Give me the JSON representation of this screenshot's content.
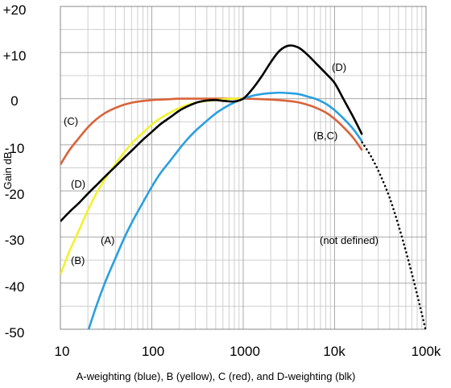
{
  "chart_data": {
    "type": "line",
    "title": "",
    "xlabel": "A-weighting (blue), B (yellow), C (red), and D-weighting (blk)",
    "ylabel": "Gain dB",
    "x_scale": "log",
    "xlim": [
      10,
      100000
    ],
    "ylim": [
      -50,
      20
    ],
    "grid": true,
    "x_ticks": [
      {
        "value": 10,
        "label": "10"
      },
      {
        "value": 100,
        "label": "100"
      },
      {
        "value": 1000,
        "label": "1000"
      },
      {
        "value": 10000,
        "label": "10k"
      },
      {
        "value": 100000,
        "label": "100k"
      }
    ],
    "y_ticks": [
      {
        "value": 20,
        "label": "+20"
      },
      {
        "value": 10,
        "label": "+10"
      },
      {
        "value": 0,
        "label": "0"
      },
      {
        "value": -10,
        "label": "-10"
      },
      {
        "value": -20,
        "label": "-20"
      },
      {
        "value": -30,
        "label": "-30"
      },
      {
        "value": -40,
        "label": "-40"
      },
      {
        "value": -50,
        "label": "-50"
      }
    ],
    "series": [
      {
        "id": "A",
        "color": "#2a9fe0",
        "style": "solid",
        "x": [
          20,
          25,
          31.5,
          40,
          50,
          63,
          80,
          100,
          125,
          160,
          200,
          250,
          315,
          400,
          500,
          630,
          800,
          1000,
          1250,
          1600,
          2000,
          2500,
          3150,
          4000,
          5000,
          6300,
          8000,
          10000,
          12500,
          16000,
          20000
        ],
        "y": [
          -50.5,
          -44.7,
          -39.4,
          -34.6,
          -30.2,
          -26.2,
          -22.5,
          -19.1,
          -16.1,
          -13.4,
          -10.9,
          -8.6,
          -6.6,
          -4.8,
          -3.2,
          -1.9,
          -0.8,
          0,
          0.6,
          1.0,
          1.2,
          1.3,
          1.2,
          1.0,
          0.5,
          -0.1,
          -1.1,
          -2.5,
          -4.3,
          -6.6,
          -9.3
        ]
      },
      {
        "id": "B",
        "color": "#f2f230",
        "style": "solid",
        "x": [
          10,
          12.5,
          16,
          20,
          25,
          31.5,
          40,
          50,
          63,
          80,
          100,
          125,
          160,
          200,
          250,
          315,
          400,
          500,
          630,
          800,
          1000
        ],
        "y": [
          -38.2,
          -33.2,
          -28.5,
          -24.2,
          -20.4,
          -17.1,
          -14.2,
          -11.6,
          -9.3,
          -7.4,
          -5.6,
          -4.2,
          -3.0,
          -2.0,
          -1.3,
          -0.8,
          -0.5,
          -0.3,
          -0.1,
          0,
          0
        ]
      },
      {
        "id": "C",
        "color": "#d9633a",
        "style": "solid",
        "x": [
          10,
          12.5,
          16,
          20,
          25,
          31.5,
          40,
          50,
          63,
          80,
          100,
          125,
          160,
          200,
          400,
          1000,
          2000,
          3150,
          4000,
          5000,
          6300,
          8000,
          10000,
          12500,
          16000,
          20000
        ],
        "y": [
          -14.3,
          -11.2,
          -8.5,
          -6.2,
          -4.4,
          -3.0,
          -2.0,
          -1.3,
          -0.8,
          -0.5,
          -0.3,
          -0.2,
          -0.1,
          0,
          0,
          0,
          -0.2,
          -0.5,
          -0.8,
          -1.3,
          -2.0,
          -3.0,
          -4.4,
          -6.2,
          -8.5,
          -11.2
        ]
      },
      {
        "id": "D",
        "color": "#000000",
        "style": "solid",
        "x": [
          10,
          12.5,
          16,
          20,
          25,
          31.5,
          40,
          50,
          63,
          80,
          100,
          125,
          160,
          200,
          250,
          315,
          400,
          500,
          630,
          800,
          1000,
          1250,
          1600,
          2000,
          2500,
          3150,
          4000,
          5000,
          6300,
          8000,
          10000,
          12500,
          16000,
          20000
        ],
        "y": [
          -26.6,
          -24.6,
          -22.6,
          -20.6,
          -18.7,
          -16.7,
          -14.7,
          -12.8,
          -10.9,
          -8.9,
          -7.2,
          -5.5,
          -4.0,
          -2.6,
          -1.6,
          -0.8,
          -0.4,
          -0.3,
          -0.5,
          -0.6,
          0,
          2.0,
          4.9,
          7.9,
          10.4,
          11.5,
          11.1,
          9.6,
          7.6,
          5.5,
          3.4,
          -0.1,
          -4.0,
          -7.8
        ]
      },
      {
        "id": "not-defined",
        "color": "#000000",
        "style": "dotted",
        "x": [
          20000,
          25000,
          31500,
          40000,
          50000,
          63000,
          80000,
          100000
        ],
        "y": [
          -9.5,
          -12.5,
          -16.5,
          -21.5,
          -27.5,
          -34.5,
          -42.5,
          -50.5
        ]
      }
    ],
    "annotations": [
      {
        "id": "C",
        "text": "(C)"
      },
      {
        "id": "D",
        "text": "(D)"
      },
      {
        "id": "B",
        "text": "(B)"
      },
      {
        "id": "A",
        "text": "(A)"
      },
      {
        "id": "D-peak",
        "text": "(D)"
      },
      {
        "id": "BC",
        "text": "(B,C)"
      },
      {
        "id": "nd",
        "text": "(not defined)"
      }
    ]
  }
}
